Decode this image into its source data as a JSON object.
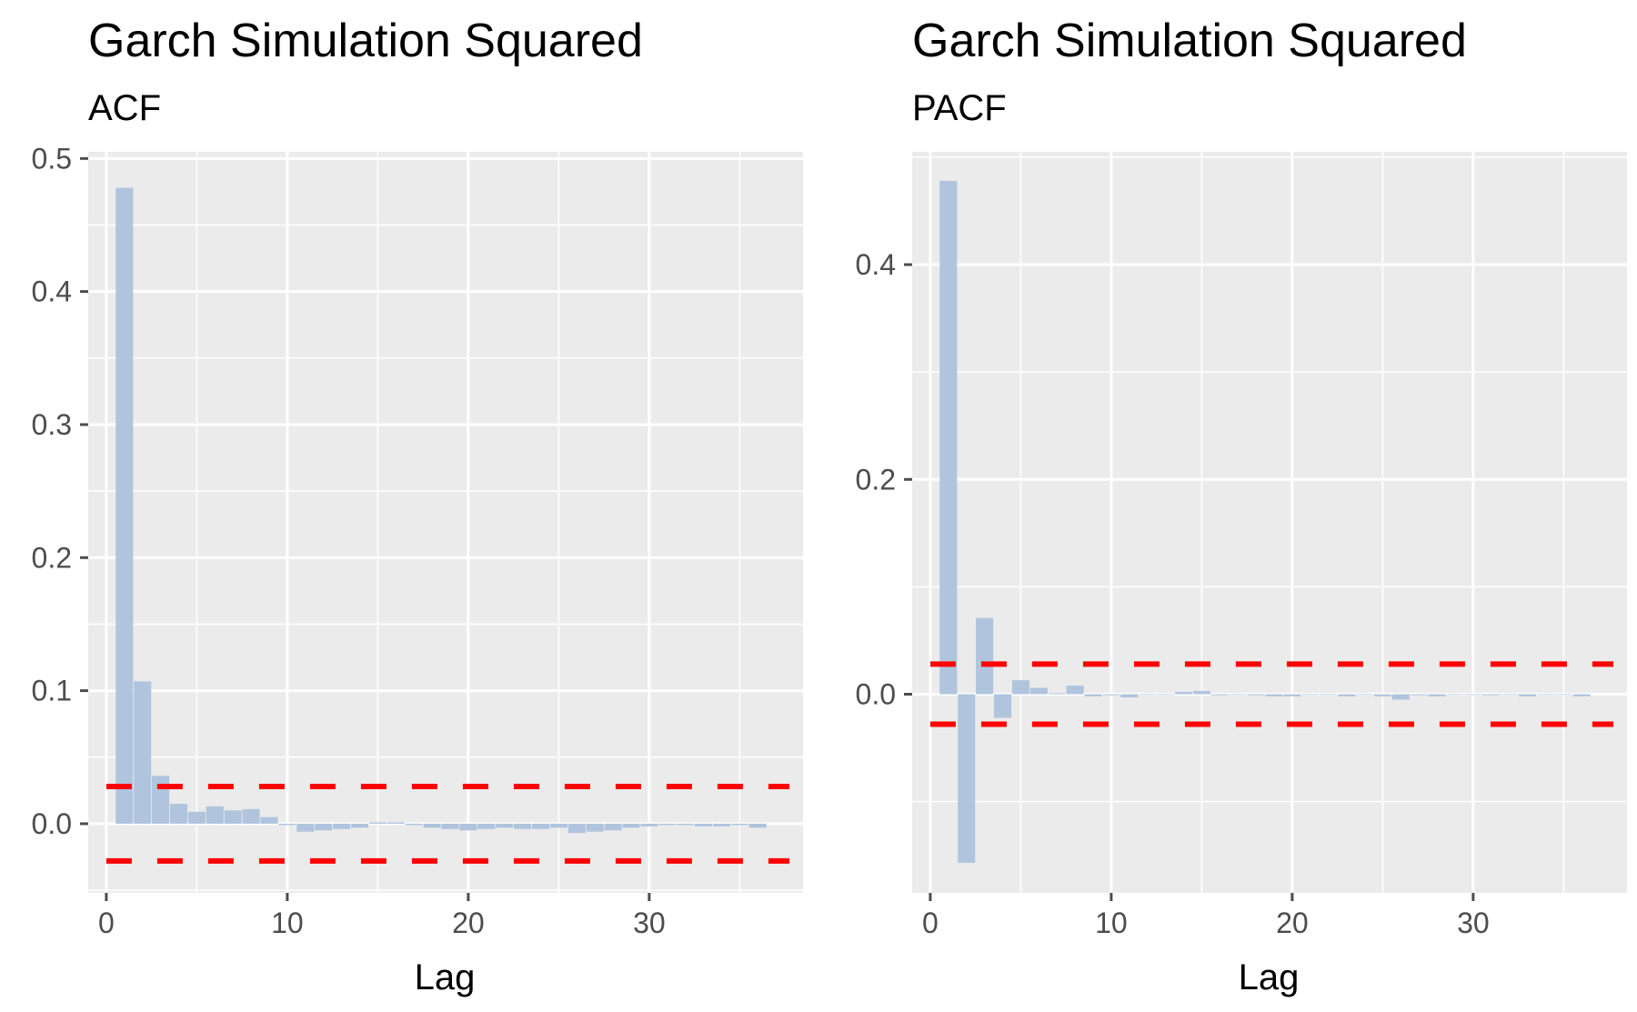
{
  "colors": {
    "panel": "#EBEBEB",
    "grid": "#FFFFFF",
    "bar": "#B0C4DE",
    "ci": "#FF0000",
    "tick": "#4D4D4D",
    "text": "#000000"
  },
  "chart_data": [
    {
      "type": "bar",
      "title": "Garch Simulation Squared",
      "subtitle": "ACF",
      "xlabel": "Lag",
      "ylabel": "",
      "xlim": [
        -1,
        38.5
      ],
      "ylim": [
        -0.052,
        0.505
      ],
      "x_ticks": [
        0,
        10,
        20,
        30
      ],
      "x_tick_labels": [
        "0",
        "10",
        "20",
        "30"
      ],
      "y_ticks": [
        0.0,
        0.1,
        0.2,
        0.3,
        0.4,
        0.5
      ],
      "y_tick_labels": [
        "0.0",
        "0.1",
        "0.2",
        "0.3",
        "0.4",
        "0.5"
      ],
      "ci": [
        0.028,
        -0.028
      ],
      "grid": true,
      "x": [
        1,
        2,
        3,
        4,
        5,
        6,
        7,
        8,
        9,
        10,
        11,
        12,
        13,
        14,
        15,
        16,
        17,
        18,
        19,
        20,
        21,
        22,
        23,
        24,
        25,
        26,
        27,
        28,
        29,
        30,
        31,
        32,
        33,
        34,
        35,
        36
      ],
      "values": [
        0.478,
        0.107,
        0.036,
        0.015,
        0.009,
        0.013,
        0.01,
        0.011,
        0.005,
        -0.001,
        -0.006,
        -0.005,
        -0.004,
        -0.003,
        0.001,
        0.001,
        -0.001,
        -0.003,
        -0.004,
        -0.005,
        -0.004,
        -0.003,
        -0.004,
        -0.004,
        -0.003,
        -0.007,
        -0.006,
        -0.005,
        -0.003,
        -0.002,
        -0.001,
        -0.001,
        -0.002,
        -0.002,
        -0.001,
        -0.003
      ]
    },
    {
      "type": "bar",
      "title": "Garch Simulation Squared",
      "subtitle": "PACF",
      "xlabel": "Lag",
      "ylabel": "",
      "xlim": [
        -1,
        38.5
      ],
      "ylim": [
        -0.185,
        0.505
      ],
      "x_ticks": [
        0,
        10,
        20,
        30
      ],
      "x_tick_labels": [
        "0",
        "10",
        "20",
        "30"
      ],
      "y_ticks": [
        0.0,
        0.2,
        0.4
      ],
      "y_tick_labels": [
        "0.0",
        "0.2",
        "0.4"
      ],
      "ci": [
        0.028,
        -0.028
      ],
      "grid": true,
      "x": [
        1,
        2,
        3,
        4,
        5,
        6,
        7,
        8,
        9,
        10,
        11,
        12,
        13,
        14,
        15,
        16,
        17,
        18,
        19,
        20,
        21,
        22,
        23,
        24,
        25,
        26,
        27,
        28,
        29,
        30,
        31,
        32,
        33,
        34,
        35,
        36
      ],
      "values": [
        0.478,
        -0.157,
        0.071,
        -0.022,
        0.013,
        0.006,
        0.001,
        0.008,
        -0.002,
        -0.001,
        -0.003,
        0.0,
        0.0,
        0.002,
        0.003,
        -0.001,
        0.0,
        -0.001,
        -0.002,
        -0.002,
        0.0,
        0.0,
        -0.002,
        0.0,
        -0.002,
        -0.005,
        -0.001,
        -0.002,
        0.0,
        0.0,
        -0.001,
        0.0,
        -0.002,
        0.0,
        0.0,
        -0.002
      ]
    }
  ]
}
